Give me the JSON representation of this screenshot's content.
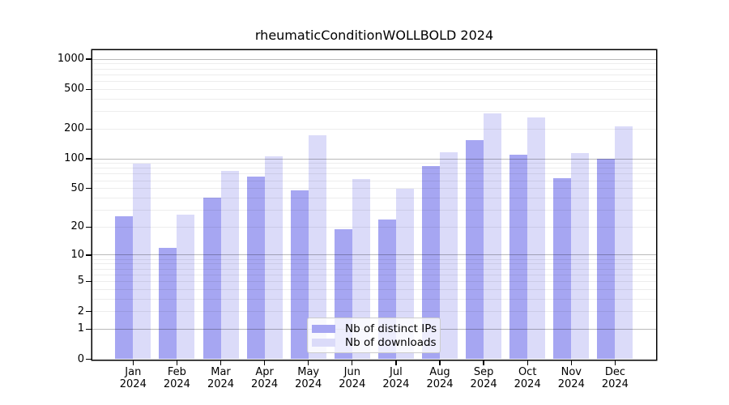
{
  "chart_data": {
    "type": "bar",
    "title": "rheumaticConditionWOLLBOLD 2024",
    "x_tick_months": [
      "Jan",
      "Feb",
      "Mar",
      "Apr",
      "May",
      "Jun",
      "Jul",
      "Aug",
      "Sep",
      "Oct",
      "Nov",
      "Dec"
    ],
    "x_tick_year": "2024",
    "series": [
      {
        "name": "Nb of distinct IPs",
        "key": "distinct-ips",
        "color": "#a6a6f2",
        "values": [
          26,
          12,
          40,
          66,
          48,
          19,
          24,
          85,
          155,
          110,
          64,
          100
        ]
      },
      {
        "name": "Nb of downloads",
        "key": "downloads",
        "color": "#dbdbf9",
        "values": [
          90,
          27,
          75,
          105,
          172,
          63,
          50,
          117,
          285,
          260,
          114,
          212
        ]
      }
    ],
    "yscale": "log1p",
    "y_tick_values": [
      0,
      1,
      2,
      5,
      10,
      20,
      50,
      100,
      200,
      500,
      1000
    ],
    "ylim": [
      0,
      1230
    ],
    "grid": "horizontal",
    "grid_major_at": [
      1,
      10,
      100,
      1000
    ],
    "legend_position": "inside-bottom-center"
  },
  "colors": {
    "bar_distinct_ips": "#a6a6f2",
    "bar_downloads": "#dbdbf9",
    "grid_major": "#bababa",
    "grid_minor": "#ececec",
    "spine": "#000000",
    "background": "#ffffff",
    "legend_border": "#cccccc"
  }
}
